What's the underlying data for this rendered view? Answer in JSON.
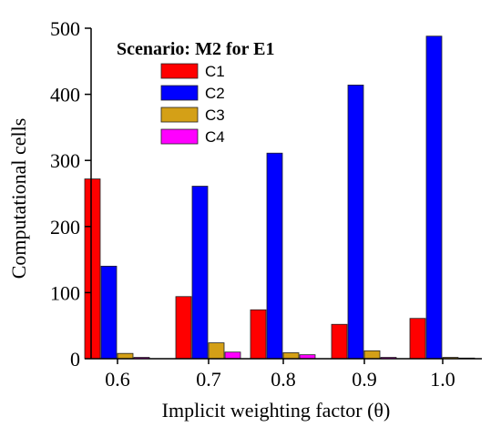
{
  "chart_data": {
    "type": "bar",
    "title": "Scenario: M2 for E1",
    "xlabel": "Implicit weighting factor (θ)",
    "ylabel": "Computational cells",
    "categories": [
      "0.6",
      "0.7",
      "0.8",
      "0.9",
      "1.0"
    ],
    "ylim": [
      0,
      500
    ],
    "yticks": [
      0,
      100,
      200,
      300,
      400,
      500
    ],
    "grid": false,
    "legend_position": "top-left",
    "series": [
      {
        "name": "C1",
        "color": "#ff0000",
        "values": [
          272,
          94,
          74,
          52,
          61
        ]
      },
      {
        "name": "C2",
        "color": "#0000ff",
        "values": [
          140,
          261,
          311,
          414,
          488
        ]
      },
      {
        "name": "C3",
        "color": "#d4a017",
        "values": [
          8,
          24,
          9,
          12,
          2
        ]
      },
      {
        "name": "C4",
        "color": "#ff00ff",
        "values": [
          2,
          10,
          6,
          2,
          1
        ]
      }
    ]
  }
}
